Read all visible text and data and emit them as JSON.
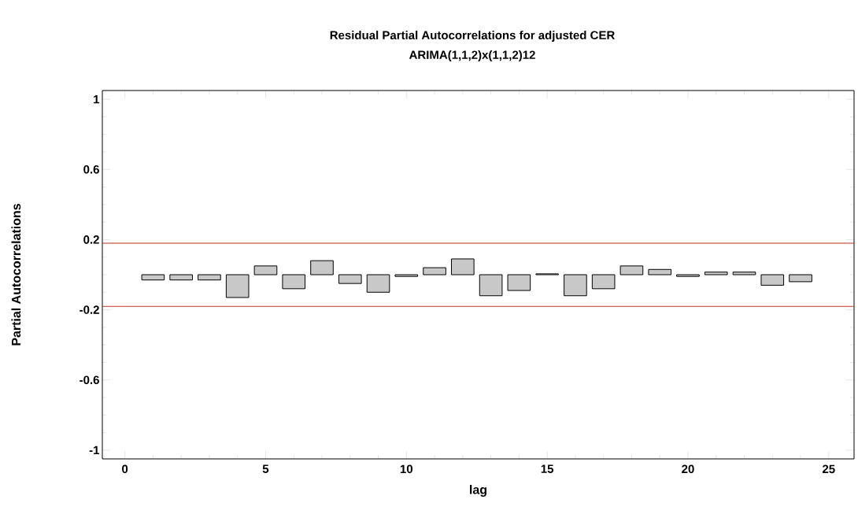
{
  "chart_data": {
    "type": "bar",
    "title": "Residual Partial Autocorrelations for adjusted CER",
    "subtitle": "ARIMA(1,1,2)x(1,1,2)12",
    "xlabel": "lag",
    "ylabel": "Partial Autocorrelations",
    "x": [
      1,
      2,
      3,
      4,
      5,
      6,
      7,
      8,
      9,
      10,
      11,
      12,
      13,
      14,
      15,
      16,
      17,
      18,
      19,
      20,
      21,
      22,
      23,
      24
    ],
    "values": [
      -0.03,
      -0.03,
      -0.03,
      -0.13,
      0.05,
      -0.08,
      0.08,
      -0.05,
      -0.1,
      -0.01,
      0.04,
      0.09,
      -0.12,
      -0.09,
      0.005,
      -0.12,
      -0.08,
      0.05,
      0.03,
      -0.01,
      0.015,
      0.015,
      -0.06,
      -0.04
    ],
    "color": "#c8c8c8",
    "xlim": [
      -0.8,
      25.9
    ],
    "ylim": [
      -1.05,
      1.05
    ],
    "xticks": [
      0,
      5,
      10,
      15,
      20,
      25
    ],
    "yticks": [
      -1,
      -0.6,
      -0.2,
      0.2,
      0.6,
      1
    ],
    "ref_lines": [
      {
        "axis": "y",
        "value": 0.18,
        "color": "#c0392b"
      },
      {
        "axis": "y",
        "value": -0.18,
        "color": "#c0392b"
      }
    ],
    "grid": false
  }
}
